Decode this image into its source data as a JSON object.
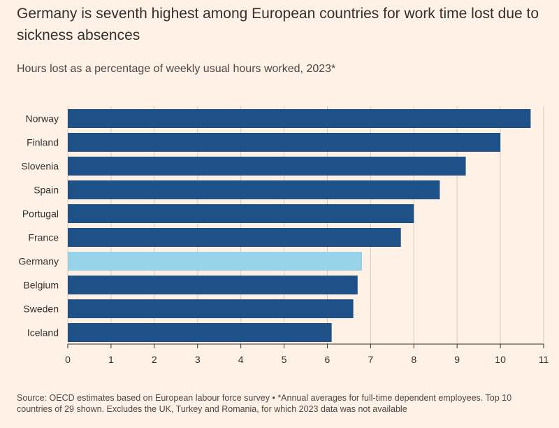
{
  "title": "Germany is seventh highest among European countries for work time lost due to sickness absences",
  "subtitle": "Hours lost as a percentage of weekly usual hours worked, 2023*",
  "source": "Source: OECD estimates based on European labour force survey • *Annual averages for full-time dependent employees. Top 10 countries of 29 shown. Excludes the UK, Turkey and Romania, for which 2023 data was not available",
  "colors": {
    "background": "#FFF1E5",
    "bar": "#1F5189",
    "highlight": "#96D3E8",
    "grid": "#D9CCC1",
    "axis": "#33302E"
  },
  "chart_data": {
    "type": "bar",
    "orientation": "horizontal",
    "categories": [
      "Norway",
      "Finland",
      "Slovenia",
      "Spain",
      "Portugal",
      "France",
      "Germany",
      "Belgium",
      "Sweden",
      "Iceland"
    ],
    "values": [
      10.7,
      10.0,
      9.2,
      8.6,
      8.0,
      7.7,
      6.8,
      6.7,
      6.6,
      6.1
    ],
    "highlight": "Germany",
    "xlim": [
      0,
      11
    ],
    "xticks": [
      "0",
      "1",
      "2",
      "3",
      "4",
      "5",
      "6",
      "7",
      "8",
      "9",
      "10",
      "11"
    ],
    "grid": true
  }
}
